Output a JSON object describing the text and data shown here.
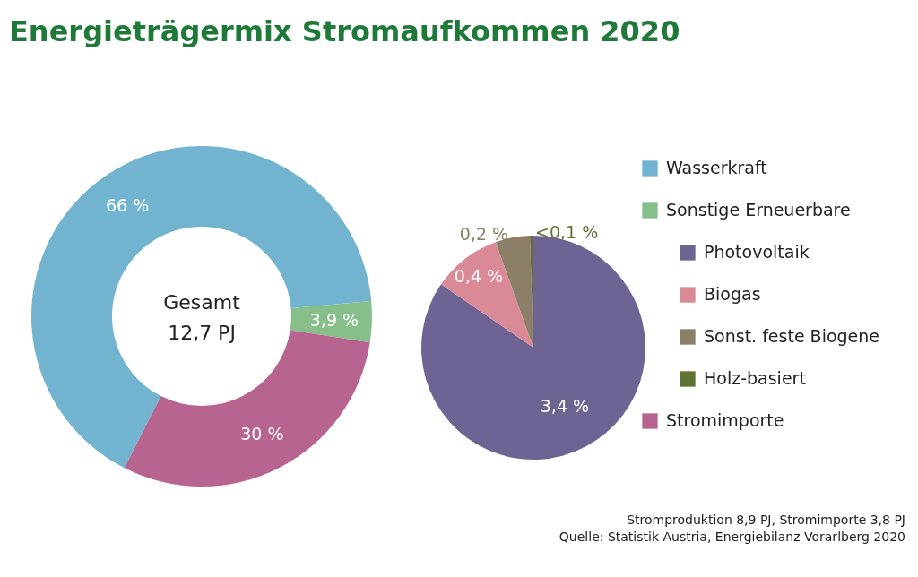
{
  "chart_data": [
    {
      "type": "donut",
      "title": "Energieträgermix Stromaufkommen 2020",
      "categories": [
        "Wasserkraft",
        "Sonstige Erneuerbare",
        "Stromimporte"
      ],
      "values": [
        66,
        3.9,
        30
      ],
      "colors": [
        "#72b4d0",
        "#86bf8a",
        "#b86491"
      ],
      "value_labels": [
        "66 %",
        "3,9 %",
        "30 %"
      ],
      "legend": "right",
      "annotations": [
        "Gesamt 12,7 PJ"
      ]
    },
    {
      "type": "pie",
      "categories": [
        "Photovoltaik",
        "Biogas",
        "Sonst. feste Biogene",
        "Holz-basiert"
      ],
      "values": [
        3.4,
        0.4,
        0.2,
        0.02
      ],
      "colors": [
        "#6e6494",
        "#d98a96",
        "#8b7f68",
        "#5e7234"
      ],
      "value_labels": [
        "3,4 %",
        "0,4 %",
        "0,2 %",
        "<0,1 %"
      ],
      "legend": "right",
      "annotations": [
        "Stromproduktion 8,9 PJ, Stromimporte 3,8 PJ",
        "Quelle: Statistik Austria, Energiebilanz Vorarlberg 2020"
      ]
    }
  ]
}
